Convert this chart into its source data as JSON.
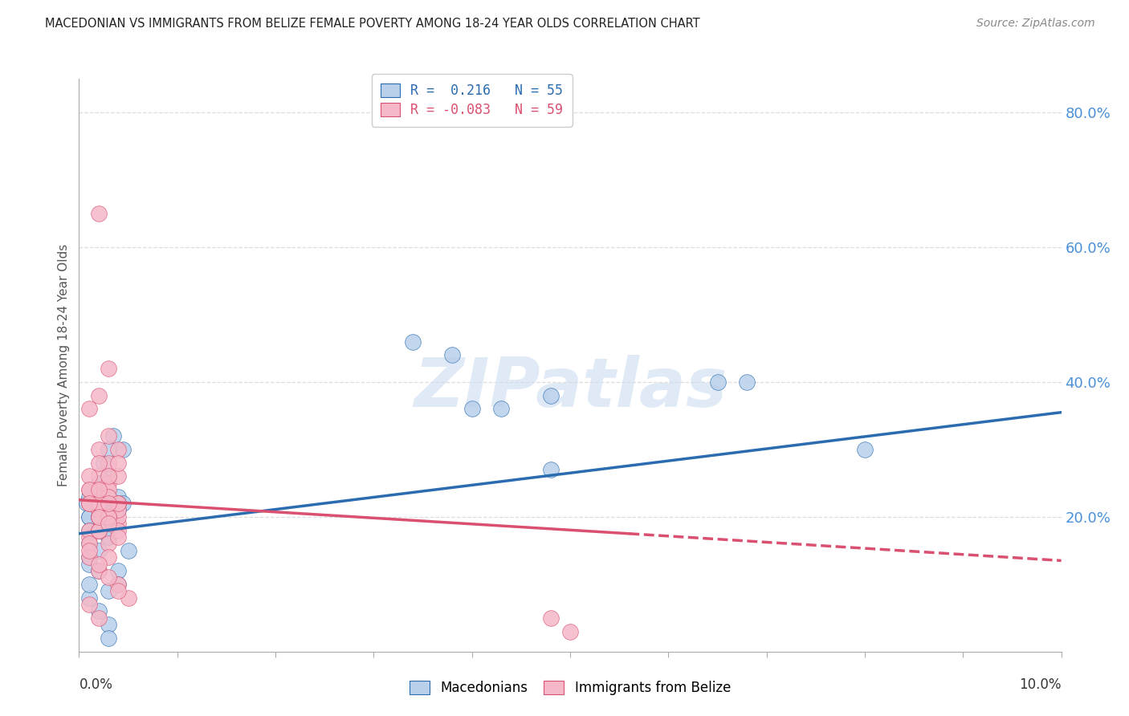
{
  "title": "MACEDONIAN VS IMMIGRANTS FROM BELIZE FEMALE POVERTY AMONG 18-24 YEAR OLDS CORRELATION CHART",
  "source": "Source: ZipAtlas.com",
  "ylabel": "Female Poverty Among 18-24 Year Olds",
  "right_ytick_vals": [
    0.8,
    0.6,
    0.4,
    0.2
  ],
  "right_ytick_labels": [
    "80.0%",
    "60.0%",
    "40.0%",
    "20.0%"
  ],
  "watermark": "ZIPatlas",
  "legend_r1": "0.216",
  "legend_n1": "55",
  "legend_r2": "-0.083",
  "legend_n2": "59",
  "mac_color": "#b8d0ea",
  "bel_color": "#f5b8c8",
  "mac_line_color": "#2b6cb0",
  "bel_line_color": "#d95070",
  "xlim": [
    0.0,
    0.1
  ],
  "ylim": [
    0.0,
    0.85
  ],
  "mac_x": [
    0.0008,
    0.0015,
    0.002,
    0.0025,
    0.003,
    0.0035,
    0.004,
    0.0045,
    0.005,
    0.001,
    0.002,
    0.003,
    0.0015,
    0.0025,
    0.0035,
    0.0045,
    0.001,
    0.002,
    0.003,
    0.004,
    0.001,
    0.002,
    0.003,
    0.004,
    0.001,
    0.002,
    0.001,
    0.002,
    0.003,
    0.001,
    0.002,
    0.003,
    0.002,
    0.003,
    0.004,
    0.001,
    0.002,
    0.003,
    0.004,
    0.034,
    0.038,
    0.043,
    0.048,
    0.065,
    0.068,
    0.04,
    0.08,
    0.001,
    0.002,
    0.003,
    0.001,
    0.002,
    0.003,
    0.048,
    0.003
  ],
  "mac_y": [
    0.22,
    0.24,
    0.2,
    0.18,
    0.21,
    0.19,
    0.23,
    0.22,
    0.15,
    0.2,
    0.25,
    0.17,
    0.22,
    0.28,
    0.32,
    0.3,
    0.14,
    0.18,
    0.22,
    0.12,
    0.2,
    0.24,
    0.26,
    0.1,
    0.16,
    0.2,
    0.23,
    0.21,
    0.19,
    0.13,
    0.15,
    0.17,
    0.25,
    0.3,
    0.22,
    0.18,
    0.2,
    0.23,
    0.21,
    0.46,
    0.44,
    0.36,
    0.38,
    0.4,
    0.4,
    0.36,
    0.3,
    0.08,
    0.06,
    0.04,
    0.1,
    0.12,
    0.09,
    0.27,
    0.02
  ],
  "bel_x": [
    0.001,
    0.002,
    0.003,
    0.004,
    0.001,
    0.002,
    0.003,
    0.004,
    0.001,
    0.002,
    0.003,
    0.004,
    0.001,
    0.002,
    0.003,
    0.004,
    0.001,
    0.002,
    0.003,
    0.004,
    0.001,
    0.002,
    0.003,
    0.004,
    0.001,
    0.002,
    0.001,
    0.002,
    0.003,
    0.004,
    0.001,
    0.002,
    0.003,
    0.002,
    0.003,
    0.004,
    0.002,
    0.003,
    0.004,
    0.005,
    0.001,
    0.002,
    0.003,
    0.002,
    0.003,
    0.004,
    0.002,
    0.001,
    0.002,
    0.003,
    0.004,
    0.002,
    0.003,
    0.001,
    0.002,
    0.048,
    0.05,
    0.003,
    0.004
  ],
  "bel_y": [
    0.22,
    0.24,
    0.2,
    0.3,
    0.36,
    0.38,
    0.42,
    0.22,
    0.24,
    0.26,
    0.28,
    0.19,
    0.17,
    0.21,
    0.25,
    0.2,
    0.18,
    0.22,
    0.24,
    0.26,
    0.16,
    0.2,
    0.23,
    0.21,
    0.14,
    0.18,
    0.26,
    0.3,
    0.32,
    0.28,
    0.24,
    0.22,
    0.2,
    0.18,
    0.16,
    0.22,
    0.12,
    0.14,
    0.1,
    0.08,
    0.22,
    0.24,
    0.26,
    0.28,
    0.2,
    0.18,
    0.65,
    0.15,
    0.13,
    0.11,
    0.09,
    0.2,
    0.22,
    0.07,
    0.05,
    0.05,
    0.03,
    0.19,
    0.17
  ],
  "mac_trend": [
    0.0,
    0.175,
    0.1,
    0.355
  ],
  "bel_trend_solid": [
    0.0,
    0.225,
    0.056,
    0.175
  ],
  "bel_trend_dashed": [
    0.056,
    0.175,
    0.1,
    0.135
  ],
  "bg_color": "#ffffff",
  "grid_color": "#dddddd",
  "axis_label_color": "#4a90d9",
  "title_color": "#222222",
  "source_color": "#888888",
  "watermark_color": "#ccddf0"
}
